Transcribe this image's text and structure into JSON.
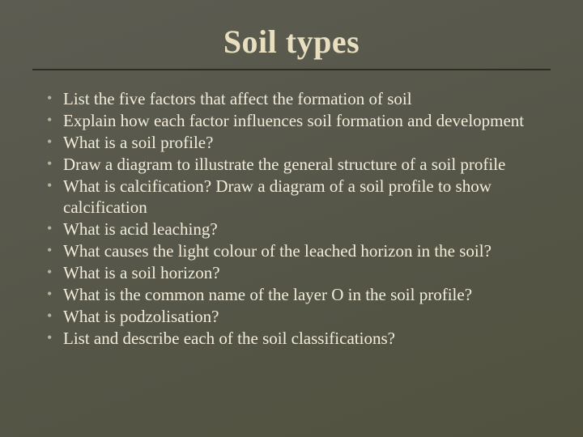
{
  "title": "Soil types",
  "title_fontsize": 40,
  "title_color": "#e8dfc0",
  "body_fontsize": 21,
  "bullet_color": "#b8b29a",
  "text_color": "#f2ecd9",
  "rule_color": "#2d2d22",
  "background_color": "#565649",
  "bullets": [
    "List the five factors that affect the formation of soil",
    "Explain how each factor influences soil formation and development",
    "What is a soil profile?",
    "Draw a diagram to illustrate the general structure of a soil profile",
    "What is calcification? Draw a diagram of a soil profile to show calcification",
    "What is acid leaching?",
    "What causes the light colour of the leached horizon in the soil?",
    "What is a soil horizon?",
    "What is the common name of the layer O in the soil profile?",
    "What is podzolisation?",
    "List and describe each of the soil classifications?"
  ]
}
